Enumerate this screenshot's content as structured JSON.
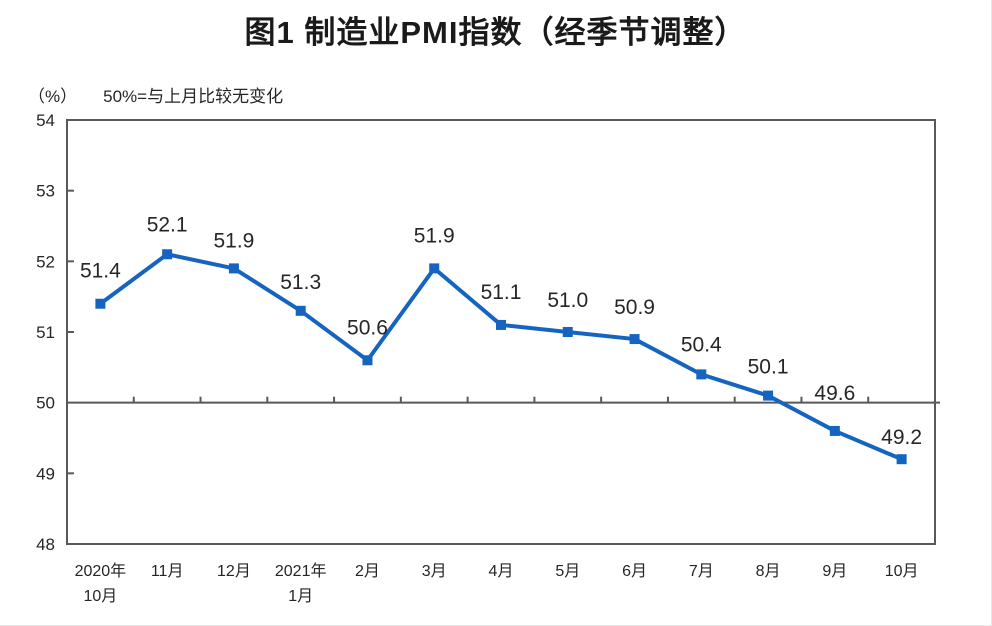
{
  "header": {
    "title": "图1 制造业PMI指数（经季节调整）"
  },
  "subtitle": {
    "unit_label": "（%）",
    "note": "50%=与上月比较无变化"
  },
  "chart_data": {
    "type": "line",
    "title": "图1 制造业PMI指数（经季节调整）",
    "unit_label": "（%）",
    "annotation": "50%=与上月比较无变化",
    "categories": [
      "2020年\n10月",
      "11月",
      "12月",
      "2021年\n1月",
      "2月",
      "3月",
      "4月",
      "5月",
      "6月",
      "7月",
      "8月",
      "9月",
      "10月"
    ],
    "series": [
      {
        "name": "制造业PMI指数",
        "values": [
          51.4,
          52.1,
          51.9,
          51.3,
          50.6,
          51.9,
          51.1,
          51.0,
          50.9,
          50.4,
          50.1,
          49.6,
          49.2
        ]
      }
    ],
    "data_label_format": "one_decimal",
    "xlabel": "",
    "ylabel": "%",
    "ylim": [
      48,
      54
    ],
    "y_ticks": [
      48,
      49,
      50,
      51,
      52,
      53,
      54
    ],
    "reference_line": 50,
    "grid": false,
    "legend_position": "none",
    "marker": "square",
    "colors": {
      "line": "#1565c0",
      "marker": "#1565c0",
      "axis": "#595959",
      "data_label": "#262626",
      "tick_label": "#262626"
    },
    "label_dy": [
      -26,
      -23,
      -21,
      -22,
      -26,
      -26,
      -26,
      -25,
      -25,
      -23,
      -22,
      -31,
      -15
    ]
  }
}
